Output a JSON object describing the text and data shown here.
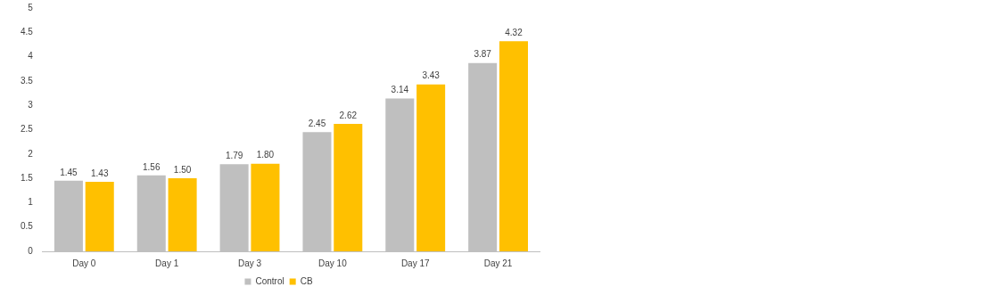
{
  "chart_data": {
    "type": "bar",
    "categories": [
      "Day 0",
      "Day 1",
      "Day 3",
      "Day 10",
      "Day 17",
      "Day 21"
    ],
    "series": [
      {
        "name": "Control",
        "color": "#bfbfbf",
        "values": [
          1.45,
          1.56,
          1.79,
          2.45,
          3.14,
          3.87
        ],
        "value_labels": [
          "1.45",
          "1.56",
          "1.79",
          "2.45",
          "3.14",
          "3.87"
        ]
      },
      {
        "name": "CB",
        "color": "#ffc000",
        "values": [
          1.43,
          1.5,
          1.8,
          2.62,
          3.43,
          4.32
        ],
        "value_labels": [
          "1.43",
          "1.50",
          "1.80",
          "2.62",
          "3.43",
          "4.32"
        ]
      }
    ],
    "ylim": [
      0,
      5
    ],
    "yticks": [
      0,
      0.5,
      1,
      1.5,
      2,
      2.5,
      3,
      3.5,
      4,
      4.5,
      5
    ],
    "grid": false,
    "legend": "bottom"
  }
}
